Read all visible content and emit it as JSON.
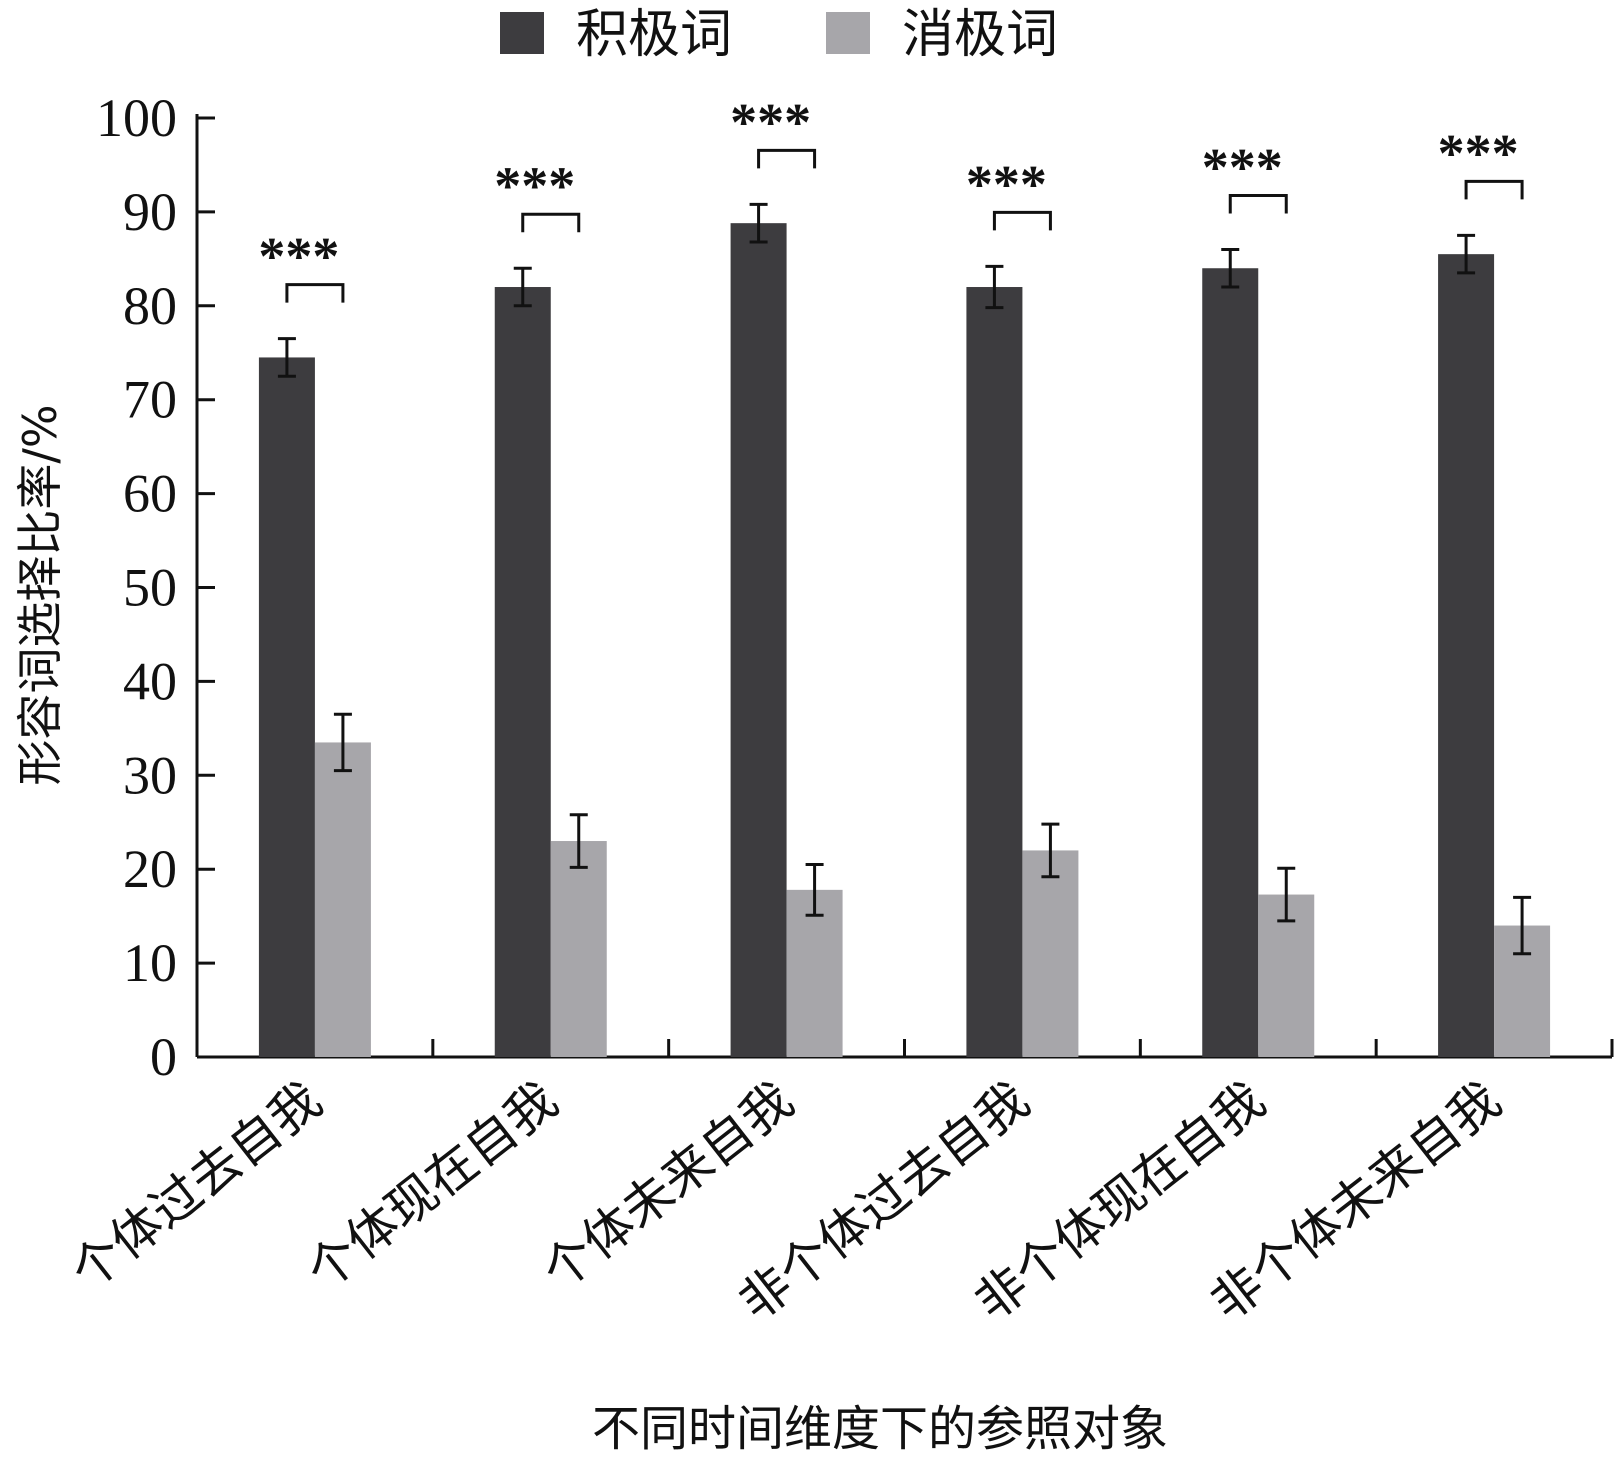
{
  "chart_data": {
    "type": "bar",
    "title": "",
    "xlabel": "不同时间维度下的参照对象",
    "ylabel": "形容词选择比率/%",
    "ylim": [
      0,
      100
    ],
    "yticks": [
      0,
      10,
      20,
      30,
      40,
      50,
      60,
      70,
      80,
      90,
      100
    ],
    "categories": [
      "个体过去自我",
      "个体现在自我",
      "个体未来自我",
      "非个体过去自我",
      "非个体现在自我",
      "非个体未来自我"
    ],
    "series": [
      {
        "name": "积极词",
        "color": "#3d3c3f",
        "values": [
          74.5,
          82,
          88.8,
          82,
          84,
          85.5
        ],
        "errors": [
          2.0,
          2.0,
          2.0,
          2.2,
          2.0,
          2.0
        ]
      },
      {
        "name": "消极词",
        "color": "#a7a6aa",
        "values": [
          33.5,
          23,
          17.8,
          22,
          17.3,
          14
        ],
        "errors": [
          3.0,
          2.8,
          2.7,
          2.8,
          2.8,
          3.0
        ]
      }
    ],
    "significance": [
      "***",
      "***",
      "***",
      "***",
      "***",
      "***"
    ],
    "legend_position": "top",
    "grid": false
  }
}
